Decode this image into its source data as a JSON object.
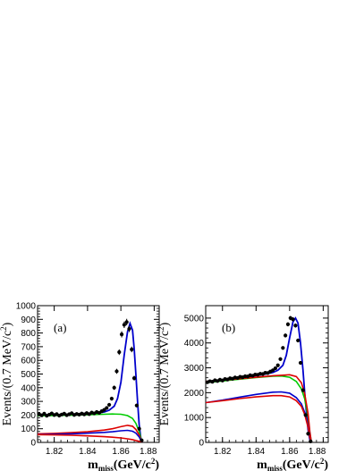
{
  "chart_data": [
    {
      "type": "line",
      "panel_label": "(a)",
      "xlabel": "m",
      "xlabel_sub": "miss",
      "xlabel_unit": "(GeV/c",
      "xlabel_unit_sup": "2",
      "xlabel_unit_close": ")",
      "ylabel": "Events/(0.7 MeV/c",
      "ylabel_sup": "2",
      "ylabel_close": ")",
      "xlim": [
        1.81,
        1.883
      ],
      "ylim": [
        0,
        1000
      ],
      "xticks": [
        1.82,
        1.84,
        1.86,
        1.88
      ],
      "xtick_labels": [
        "1.82",
        "1.84",
        "1.86",
        "1.88"
      ],
      "yticks": [
        0,
        100,
        200,
        300,
        400,
        500,
        600,
        700,
        800,
        900,
        1000
      ],
      "ytick_labels": [
        "0",
        "100",
        "200",
        "300",
        "400",
        "500",
        "600",
        "700",
        "800",
        "900",
        "1000"
      ],
      "series": [
        {
          "role": "data",
          "color": "#000000",
          "x": [
            1.811,
            1.8125,
            1.814,
            1.8155,
            1.817,
            1.8185,
            1.82,
            1.8215,
            1.823,
            1.8245,
            1.826,
            1.8275,
            1.829,
            1.8305,
            1.832,
            1.8335,
            1.835,
            1.8365,
            1.838,
            1.8395,
            1.841,
            1.8425,
            1.844,
            1.8455,
            1.847,
            1.8485,
            1.85,
            1.8515,
            1.853,
            1.8545,
            1.856,
            1.8575,
            1.859,
            1.8605,
            1.862,
            1.8635,
            1.865,
            1.8665,
            1.868,
            1.8695,
            1.871,
            1.8725
          ],
          "y": [
            205,
            198,
            210,
            195,
            203,
            212,
            200,
            207,
            196,
            204,
            210,
            199,
            206,
            213,
            201,
            208,
            203,
            211,
            205,
            214,
            207,
            218,
            212,
            222,
            216,
            228,
            238,
            252,
            275,
            320,
            400,
            520,
            660,
            790,
            860,
            880,
            830,
            680,
            470,
            270,
            100,
            15
          ]
        },
        {
          "role": "total-fit",
          "color": "#0000cc",
          "x": [
            1.81,
            1.815,
            1.82,
            1.825,
            1.83,
            1.835,
            1.84,
            1.845,
            1.85,
            1.853,
            1.856,
            1.858,
            1.86,
            1.862,
            1.864,
            1.8655,
            1.867,
            1.868,
            1.869,
            1.87,
            1.871,
            1.872,
            1.873
          ],
          "y": [
            200,
            201,
            202,
            204,
            206,
            208,
            211,
            215,
            222,
            235,
            265,
            320,
            440,
            640,
            810,
            870,
            820,
            680,
            500,
            300,
            130,
            30,
            0
          ]
        },
        {
          "role": "background-green",
          "color": "#00cc00",
          "x": [
            1.81,
            1.82,
            1.83,
            1.84,
            1.85,
            1.855,
            1.86,
            1.864,
            1.867,
            1.869,
            1.871,
            1.872,
            1.873
          ],
          "y": [
            195,
            197,
            199,
            202,
            206,
            208,
            206,
            196,
            175,
            140,
            80,
            30,
            0
          ]
        },
        {
          "role": "background-red",
          "color": "#dd0000",
          "x": [
            1.81,
            1.82,
            1.83,
            1.84,
            1.85,
            1.855,
            1.86,
            1.864,
            1.867,
            1.869,
            1.871,
            1.872,
            1.873
          ],
          "y": [
            63,
            66,
            71,
            78,
            90,
            100,
            115,
            125,
            118,
            95,
            55,
            20,
            0
          ]
        },
        {
          "role": "background-blue",
          "color": "#0000cc",
          "x": [
            1.81,
            1.82,
            1.83,
            1.84,
            1.85,
            1.855,
            1.86,
            1.864,
            1.867,
            1.869,
            1.871,
            1.872,
            1.873
          ],
          "y": [
            58,
            60,
            63,
            67,
            73,
            78,
            85,
            88,
            82,
            68,
            40,
            15,
            0
          ]
        },
        {
          "role": "background-red-lower",
          "color": "#dd0000",
          "x": [
            1.81,
            1.82,
            1.83,
            1.84,
            1.85,
            1.855,
            1.86,
            1.864,
            1.867,
            1.869,
            1.871,
            1.872,
            1.873
          ],
          "y": [
            57,
            55,
            52,
            48,
            42,
            38,
            33,
            26,
            20,
            14,
            8,
            3,
            0
          ]
        }
      ]
    },
    {
      "type": "line",
      "panel_label": "(b)",
      "xlabel": "m",
      "xlabel_sub": "miss",
      "xlabel_unit": "(GeV/c",
      "xlabel_unit_sup": "2",
      "xlabel_unit_close": ")",
      "ylabel": "Events/(0.7 MeV/c",
      "ylabel_sup": "2",
      "ylabel_close": ")",
      "xlim": [
        1.81,
        1.883
      ],
      "ylim": [
        0,
        5500
      ],
      "xticks": [
        1.82,
        1.84,
        1.86,
        1.88
      ],
      "xtick_labels": [
        "1.82",
        "1.84",
        "1.86",
        "1.88"
      ],
      "yticks": [
        0,
        1000,
        2000,
        3000,
        4000,
        5000
      ],
      "ytick_labels": [
        "0",
        "1000",
        "2000",
        "3000",
        "4000",
        "5000"
      ],
      "series": [
        {
          "role": "data",
          "color": "#000000",
          "x": [
            1.811,
            1.8125,
            1.814,
            1.8155,
            1.817,
            1.8185,
            1.82,
            1.8215,
            1.823,
            1.8245,
            1.826,
            1.8275,
            1.829,
            1.8305,
            1.832,
            1.8335,
            1.835,
            1.8365,
            1.838,
            1.8395,
            1.841,
            1.8425,
            1.844,
            1.8455,
            1.847,
            1.8485,
            1.85,
            1.8515,
            1.853,
            1.8545,
            1.856,
            1.8575,
            1.859,
            1.8605,
            1.862,
            1.8635,
            1.865,
            1.8665,
            1.868,
            1.8695,
            1.871,
            1.8725
          ],
          "y": [
            2420,
            2460,
            2440,
            2500,
            2470,
            2520,
            2490,
            2550,
            2530,
            2580,
            2560,
            2610,
            2590,
            2640,
            2620,
            2660,
            2650,
            2700,
            2680,
            2730,
            2720,
            2760,
            2750,
            2800,
            2790,
            2850,
            2900,
            2980,
            3100,
            3350,
            3800,
            4300,
            4750,
            5000,
            4950,
            4700,
            4100,
            3200,
            2100,
            1100,
            350,
            40
          ]
        },
        {
          "role": "total-fit",
          "color": "#0000cc",
          "x": [
            1.81,
            1.815,
            1.82,
            1.825,
            1.83,
            1.835,
            1.84,
            1.845,
            1.85,
            1.853,
            1.856,
            1.858,
            1.86,
            1.862,
            1.8635,
            1.865,
            1.8665,
            1.868,
            1.869,
            1.87,
            1.871,
            1.872,
            1.873
          ],
          "y": [
            2440,
            2480,
            2520,
            2560,
            2600,
            2640,
            2690,
            2740,
            2810,
            2900,
            3100,
            3500,
            4200,
            4850,
            5000,
            4800,
            4000,
            2900,
            2000,
            1200,
            500,
            120,
            0
          ]
        },
        {
          "role": "background-green",
          "color": "#00cc00",
          "x": [
            1.81,
            1.82,
            1.83,
            1.84,
            1.85,
            1.855,
            1.86,
            1.864,
            1.867,
            1.869,
            1.871,
            1.872,
            1.873
          ],
          "y": [
            2400,
            2470,
            2540,
            2610,
            2660,
            2670,
            2620,
            2450,
            2150,
            1750,
            1000,
            400,
            0
          ]
        },
        {
          "role": "background-red-upper",
          "color": "#dd0000",
          "x": [
            1.81,
            1.82,
            1.83,
            1.84,
            1.85,
            1.855,
            1.86,
            1.864,
            1.867,
            1.869,
            1.871,
            1.872,
            1.873
          ],
          "y": [
            2450,
            2500,
            2560,
            2620,
            2680,
            2700,
            2720,
            2650,
            2400,
            1950,
            1150,
            450,
            0
          ]
        },
        {
          "role": "background-blue",
          "color": "#0000cc",
          "x": [
            1.81,
            1.82,
            1.83,
            1.84,
            1.85,
            1.855,
            1.86,
            1.864,
            1.867,
            1.869,
            1.871,
            1.872,
            1.873
          ],
          "y": [
            1600,
            1700,
            1820,
            1930,
            2020,
            2030,
            1980,
            1800,
            1550,
            1200,
            650,
            220,
            0
          ]
        },
        {
          "role": "background-red-lower",
          "color": "#dd0000",
          "x": [
            1.81,
            1.82,
            1.83,
            1.84,
            1.85,
            1.855,
            1.86,
            1.864,
            1.867,
            1.869,
            1.871,
            1.872,
            1.873
          ],
          "y": [
            1600,
            1680,
            1760,
            1830,
            1880,
            1880,
            1830,
            1680,
            1450,
            1120,
            600,
            200,
            0
          ]
        }
      ]
    }
  ]
}
